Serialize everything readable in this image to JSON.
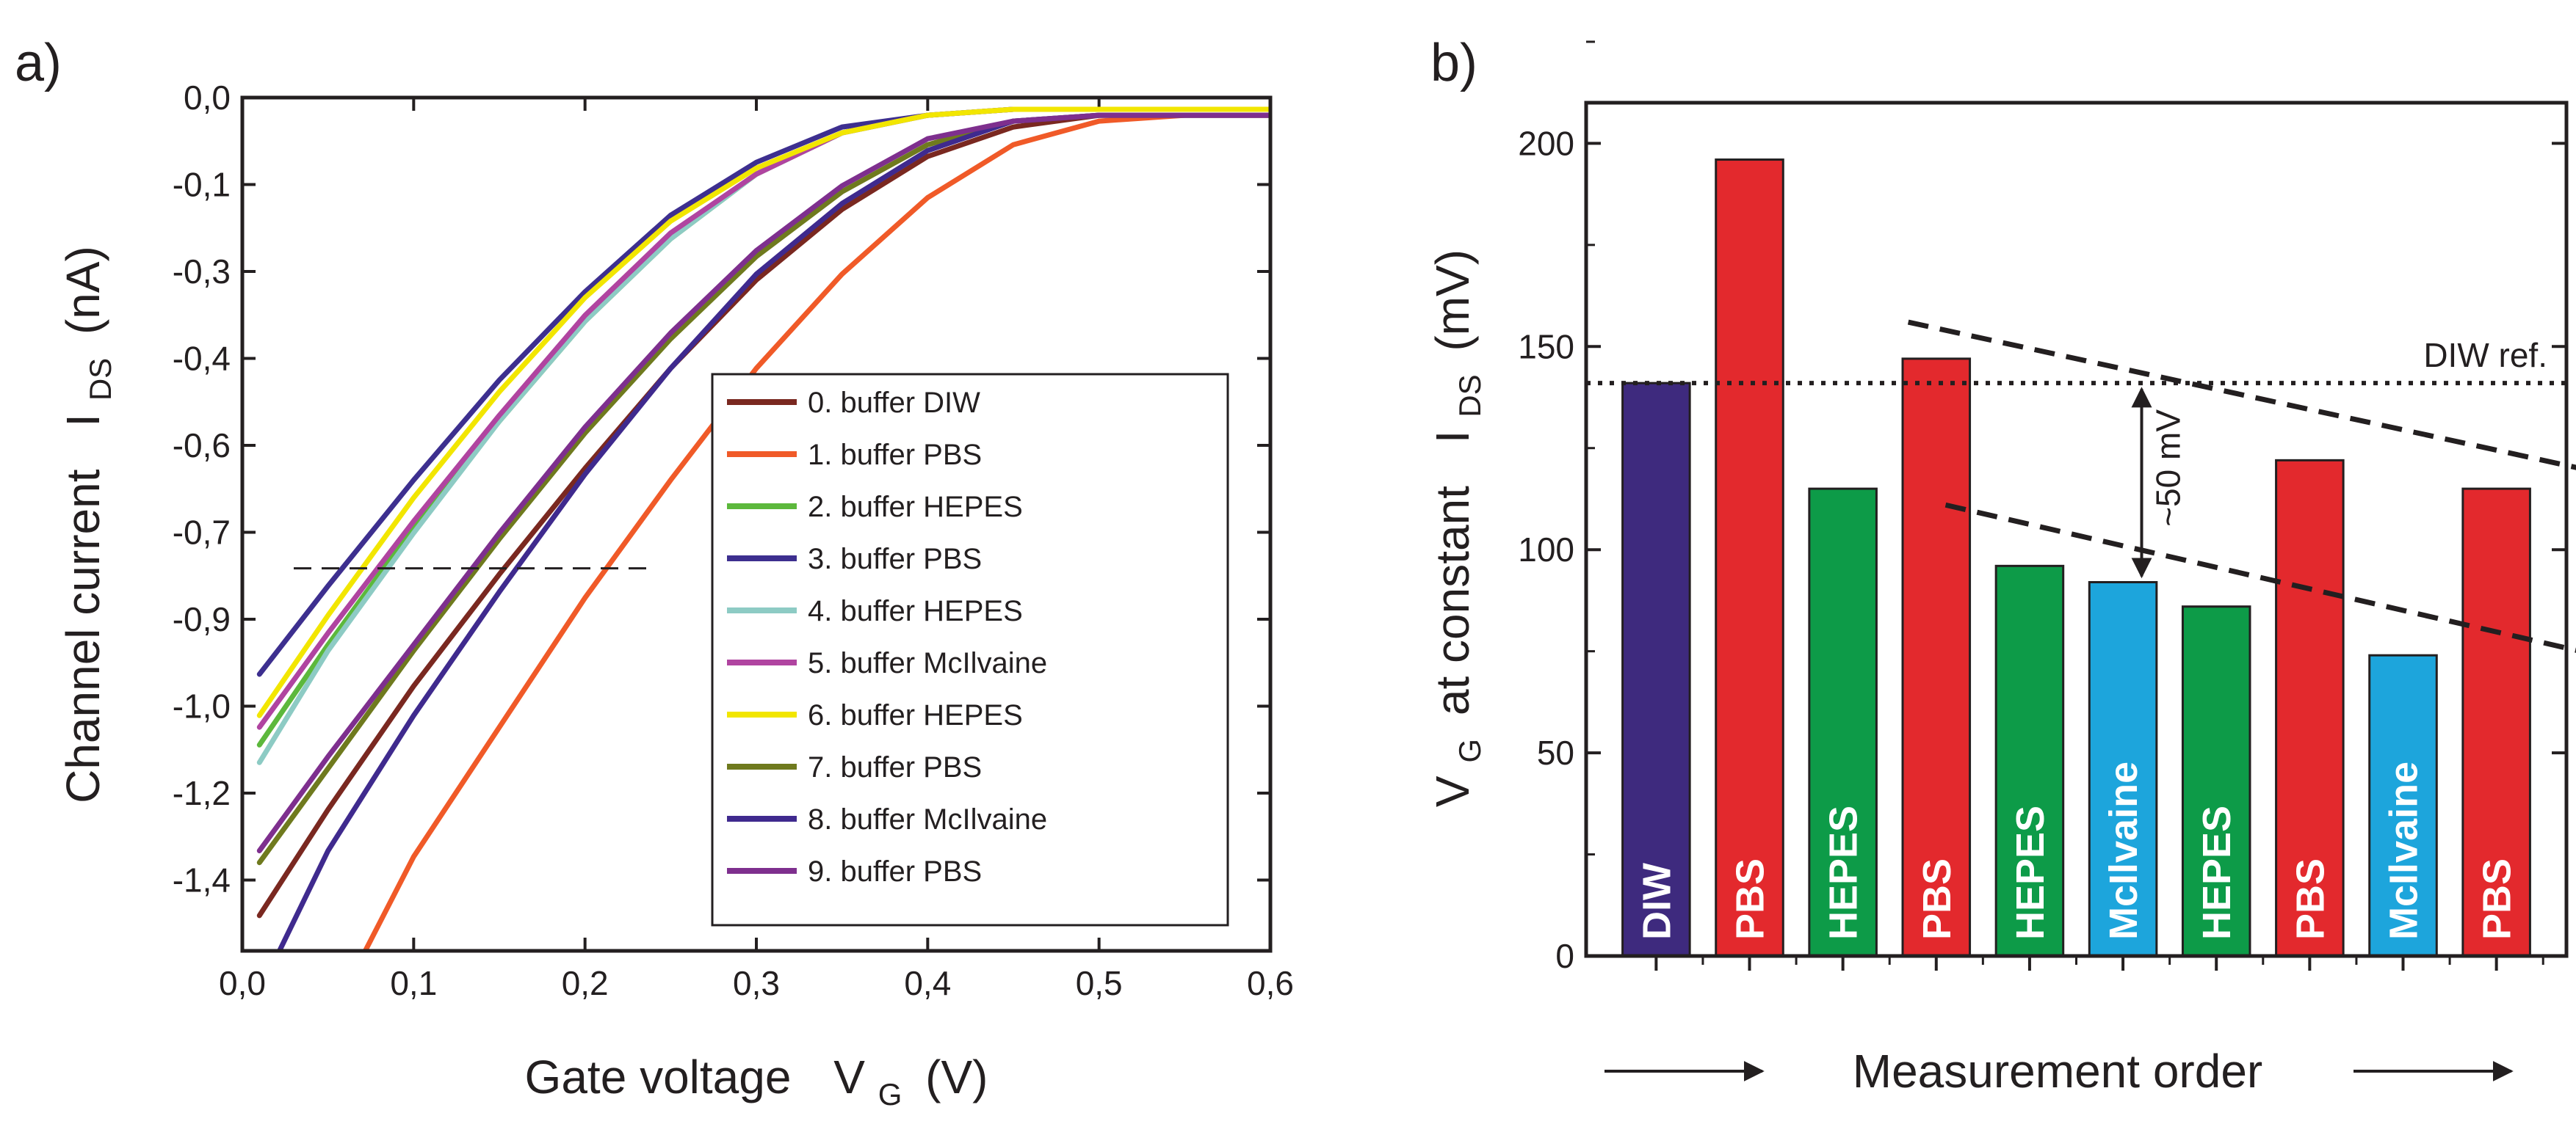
{
  "chart_data": [
    {
      "panel_label": "a)",
      "type": "line",
      "xlabel": "Gate voltage",
      "xlabel_symbol": "V",
      "xlabel_sub": "G",
      "xlabel_unit": "(V)",
      "ylabel": "Channel current",
      "ylabel_symbol": "I",
      "ylabel_sub": "DS",
      "ylabel_unit": "(nA)",
      "xlim": [
        0.0,
        0.6
      ],
      "ylim": [
        -1.45,
        0.0
      ],
      "xticks": [
        "0,0",
        "0,1",
        "0,2",
        "0,3",
        "0,4",
        "0,5",
        "0,6"
      ],
      "yticks": [
        "0,0",
        "-0,1",
        "-0,3",
        "-0,4",
        "-0,6",
        "-0,7",
        "-0,9",
        "-1,0",
        "-1,2",
        "-1,4"
      ],
      "reference_line": {
        "y": -0.8,
        "x_from": 0.03,
        "x_to": 0.24
      },
      "series": [
        {
          "name": "0. buffer DIW",
          "color": "#7a2820",
          "x": [
            0.01,
            0.05,
            0.1,
            0.15,
            0.2,
            0.25,
            0.3,
            0.35,
            0.4,
            0.45,
            0.5,
            0.55,
            0.6
          ],
          "y": [
            -1.39,
            -1.21,
            -1.0,
            -0.81,
            -0.63,
            -0.46,
            -0.31,
            -0.19,
            -0.1,
            -0.05,
            -0.03,
            -0.03,
            -0.03
          ]
        },
        {
          "name": "1. buffer PBS",
          "color": "#f05a28",
          "x": [
            0.07,
            0.1,
            0.15,
            0.2,
            0.25,
            0.3,
            0.35,
            0.4,
            0.45,
            0.5,
            0.55,
            0.6
          ],
          "y": [
            -1.46,
            -1.29,
            -1.07,
            -0.85,
            -0.65,
            -0.46,
            -0.3,
            -0.17,
            -0.08,
            -0.04,
            -0.03,
            -0.03
          ]
        },
        {
          "name": "2. buffer HEPES",
          "color": "#5cb83c",
          "x": [
            0.01,
            0.05,
            0.1,
            0.15,
            0.2,
            0.25,
            0.3,
            0.35,
            0.4,
            0.45,
            0.5,
            0.55,
            0.6
          ],
          "y": [
            -1.1,
            -0.93,
            -0.73,
            -0.55,
            -0.38,
            -0.24,
            -0.13,
            -0.06,
            -0.03,
            -0.02,
            -0.02,
            -0.02,
            -0.02
          ]
        },
        {
          "name": "3. buffer PBS",
          "color": "#3d2f8f",
          "x": [
            0.01,
            0.05,
            0.1,
            0.15,
            0.2,
            0.25,
            0.3,
            0.35,
            0.4,
            0.45,
            0.5,
            0.55,
            0.6
          ],
          "y": [
            -0.98,
            -0.83,
            -0.65,
            -0.48,
            -0.33,
            -0.2,
            -0.11,
            -0.05,
            -0.03,
            -0.02,
            -0.02,
            -0.02,
            -0.02
          ]
        },
        {
          "name": "4. buffer HEPES",
          "color": "#8dcbc4",
          "x": [
            0.01,
            0.05,
            0.1,
            0.15,
            0.2,
            0.25,
            0.3,
            0.35,
            0.4,
            0.45,
            0.5,
            0.55,
            0.6
          ],
          "y": [
            -1.13,
            -0.94,
            -0.74,
            -0.55,
            -0.38,
            -0.24,
            -0.13,
            -0.06,
            -0.03,
            -0.02,
            -0.02,
            -0.02,
            -0.02
          ]
        },
        {
          "name": "5. buffer McIlvaine",
          "color": "#b044a0",
          "x": [
            0.01,
            0.05,
            0.1,
            0.15,
            0.2,
            0.25,
            0.3,
            0.35,
            0.4,
            0.45,
            0.5,
            0.55,
            0.6
          ],
          "y": [
            -1.07,
            -0.91,
            -0.72,
            -0.54,
            -0.37,
            -0.23,
            -0.13,
            -0.06,
            -0.03,
            -0.02,
            -0.02,
            -0.02,
            -0.02
          ]
        },
        {
          "name": "6. buffer HEPES",
          "color": "#f2e600",
          "x": [
            0.01,
            0.05,
            0.1,
            0.15,
            0.2,
            0.25,
            0.3,
            0.35,
            0.4,
            0.45,
            0.5,
            0.55,
            0.6
          ],
          "y": [
            -1.05,
            -0.88,
            -0.68,
            -0.5,
            -0.34,
            -0.21,
            -0.12,
            -0.06,
            -0.03,
            -0.02,
            -0.02,
            -0.02,
            -0.02
          ]
        },
        {
          "name": "7. buffer PBS",
          "color": "#6f7a1e",
          "x": [
            0.01,
            0.05,
            0.1,
            0.15,
            0.2,
            0.25,
            0.3,
            0.35,
            0.4,
            0.45,
            0.5,
            0.55,
            0.6
          ],
          "y": [
            -1.3,
            -1.14,
            -0.94,
            -0.75,
            -0.57,
            -0.41,
            -0.27,
            -0.16,
            -0.08,
            -0.04,
            -0.03,
            -0.03,
            -0.03
          ]
        },
        {
          "name": "8. buffer McIlvaine",
          "color": "#3f2a8e",
          "x": [
            0.02,
            0.05,
            0.1,
            0.15,
            0.2,
            0.25,
            0.3,
            0.35,
            0.4,
            0.45,
            0.5,
            0.55,
            0.6
          ],
          "y": [
            -1.46,
            -1.28,
            -1.05,
            -0.84,
            -0.64,
            -0.46,
            -0.3,
            -0.18,
            -0.09,
            -0.04,
            -0.03,
            -0.03,
            -0.03
          ]
        },
        {
          "name": "9. buffer PBS",
          "color": "#7e2f8e",
          "x": [
            0.01,
            0.05,
            0.1,
            0.15,
            0.2,
            0.25,
            0.3,
            0.35,
            0.4,
            0.45,
            0.5,
            0.55,
            0.6
          ],
          "y": [
            -1.28,
            -1.12,
            -0.93,
            -0.74,
            -0.56,
            -0.4,
            -0.26,
            -0.15,
            -0.07,
            -0.04,
            -0.03,
            -0.03,
            -0.03
          ]
        }
      ]
    },
    {
      "panel_label": "b)",
      "type": "bar",
      "xlabel": "Measurement order",
      "ylabel_prefix_symbol": "V",
      "ylabel_prefix_sub": "G",
      "ylabel": "at constant",
      "ylabel_symbol": "I",
      "ylabel_sub": "DS",
      "ylabel_unit": "(mV)",
      "ylim": [
        0,
        210
      ],
      "yticks": [
        "0",
        "50",
        "100",
        "150",
        "200"
      ],
      "categories": [
        "DIW",
        "PBS",
        "HEPES",
        "PBS",
        "HEPES",
        "McIlvaine",
        "HEPES",
        "PBS",
        "McIlvaine",
        "PBS"
      ],
      "values": [
        141,
        196,
        115,
        147,
        96,
        92,
        86,
        122,
        74,
        115
      ],
      "bar_colors": [
        "#3e2a7e",
        "#e3292d",
        "#0d9b48",
        "#e3292d",
        "#0d9b48",
        "#1da5dc",
        "#0d9b48",
        "#e3292d",
        "#1da5dc",
        "#e3292d"
      ],
      "reference_line": {
        "label": "DIW ref.",
        "y": 141
      },
      "trend_lines": [
        {
          "from": [
            2.7,
            156
          ],
          "to": [
            9.9,
            120
          ]
        },
        {
          "from": [
            3.1,
            111
          ],
          "to": [
            9.9,
            75
          ]
        }
      ],
      "annotation": {
        "text": "~50 mV",
        "x": 5.2,
        "from": 141,
        "to": 92
      }
    }
  ]
}
